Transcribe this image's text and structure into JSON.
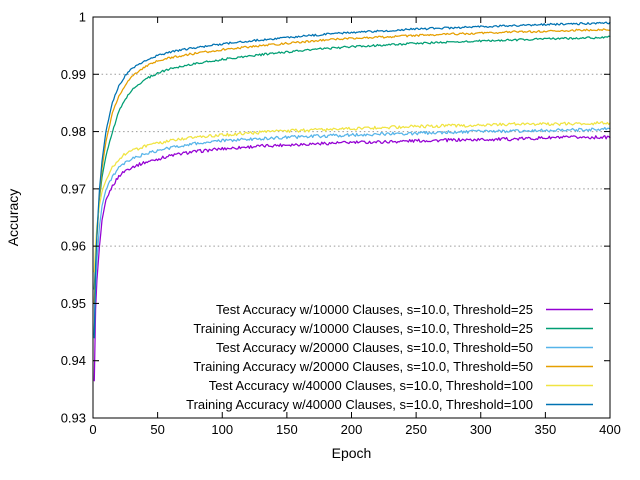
{
  "figure": {
    "background": "#ffffff",
    "border_color": "#000000",
    "grid_color": "#9a9a9a"
  },
  "chart_data": {
    "type": "line",
    "title": "",
    "xlabel": "Epoch",
    "ylabel": "Accuracy",
    "xlim": [
      0,
      400
    ],
    "ylim": [
      0.93,
      1.0
    ],
    "x_ticks": [
      0,
      50,
      100,
      150,
      200,
      250,
      300,
      350,
      400
    ],
    "x_tick_labels": [
      "0",
      "50",
      "100",
      "150",
      "200",
      "250",
      "300",
      "350",
      "400"
    ],
    "y_ticks": [
      0.93,
      0.94,
      0.95,
      0.96,
      0.97,
      0.98,
      0.99,
      1
    ],
    "y_tick_labels": [
      "0.93",
      "0.94",
      "0.95",
      "0.96",
      "0.97",
      "0.98",
      "0.99",
      "1"
    ],
    "grid": "horizontal dotted gridlines at interior y ticks",
    "legend_position": "inside bottom, right-aligned text with line samples",
    "x": [
      1,
      2,
      3,
      5,
      7,
      10,
      15,
      20,
      25,
      30,
      40,
      50,
      60,
      75,
      100,
      125,
      150,
      175,
      200,
      225,
      250,
      275,
      300,
      325,
      350,
      375,
      400
    ],
    "series": [
      {
        "name": "Test Accuracy w/10000 Clauses, s=10.0, Threshold=25",
        "color": "#9400d3",
        "kind": "test",
        "values": [
          0.9365,
          0.949,
          0.954,
          0.96,
          0.9645,
          0.968,
          0.9705,
          0.9722,
          0.9732,
          0.9738,
          0.9746,
          0.9752,
          0.9758,
          0.9764,
          0.977,
          0.9774,
          0.9777,
          0.9779,
          0.9781,
          0.9782,
          0.9784,
          0.9785,
          0.9786,
          0.9787,
          0.9789,
          0.979,
          0.979
        ]
      },
      {
        "name": "Training Accuracy w/10000 Clauses, s=10.0, Threshold=25",
        "color": "#009e73",
        "kind": "training",
        "values": [
          0.9525,
          0.958,
          0.962,
          0.9685,
          0.972,
          0.9757,
          0.98,
          0.9835,
          0.9857,
          0.9872,
          0.9891,
          0.9902,
          0.991,
          0.9917,
          0.9926,
          0.9933,
          0.9939,
          0.9944,
          0.9948,
          0.9951,
          0.9954,
          0.9956,
          0.9958,
          0.996,
          0.9962,
          0.9963,
          0.9965
        ]
      },
      {
        "name": "Test Accuracy w/20000 Clauses, s=10.0, Threshold=50",
        "color": "#56b4e9",
        "kind": "test",
        "values": [
          0.9445,
          0.953,
          0.9575,
          0.9635,
          0.967,
          0.9698,
          0.9722,
          0.9736,
          0.9745,
          0.9752,
          0.9761,
          0.9766,
          0.9772,
          0.9778,
          0.9784,
          0.9787,
          0.979,
          0.9792,
          0.9794,
          0.9796,
          0.9797,
          0.9799,
          0.98,
          0.9801,
          0.9802,
          0.9803,
          0.9805
        ]
      },
      {
        "name": "Training Accuracy w/20000 Clauses, s=10.0, Threshold=50",
        "color": "#e69f00",
        "kind": "training",
        "values": [
          0.95,
          0.957,
          0.9615,
          0.969,
          0.9735,
          0.9782,
          0.9832,
          0.9862,
          0.9882,
          0.9896,
          0.9913,
          0.9923,
          0.9929,
          0.9935,
          0.9943,
          0.9949,
          0.9954,
          0.9959,
          0.9963,
          0.9965,
          0.9968,
          0.997,
          0.9972,
          0.9974,
          0.9975,
          0.9977,
          0.9978
        ]
      },
      {
        "name": "Test Accuracy w/40000 Clauses, s=10.0, Threshold=100",
        "color": "#f0e442",
        "kind": "test",
        "values": [
          0.9555,
          0.96,
          0.9635,
          0.9672,
          0.9695,
          0.9715,
          0.9738,
          0.9752,
          0.9761,
          0.9767,
          0.9774,
          0.9779,
          0.9784,
          0.9789,
          0.9794,
          0.9798,
          0.9801,
          0.9803,
          0.9805,
          0.9807,
          0.9809,
          0.981,
          0.9811,
          0.9813,
          0.9813,
          0.9814,
          0.9815
        ]
      },
      {
        "name": "Training Accuracy w/40000 Clauses, s=10.0, Threshold=100",
        "color": "#0072b2",
        "kind": "training",
        "values": [
          0.944,
          0.9565,
          0.962,
          0.97,
          0.9748,
          0.98,
          0.985,
          0.988,
          0.9898,
          0.991,
          0.9924,
          0.9933,
          0.9939,
          0.9945,
          0.9953,
          0.9959,
          0.9964,
          0.9969,
          0.9973,
          0.9976,
          0.9979,
          0.9981,
          0.9983,
          0.9985,
          0.9987,
          0.9988,
          0.999
        ]
      }
    ]
  }
}
